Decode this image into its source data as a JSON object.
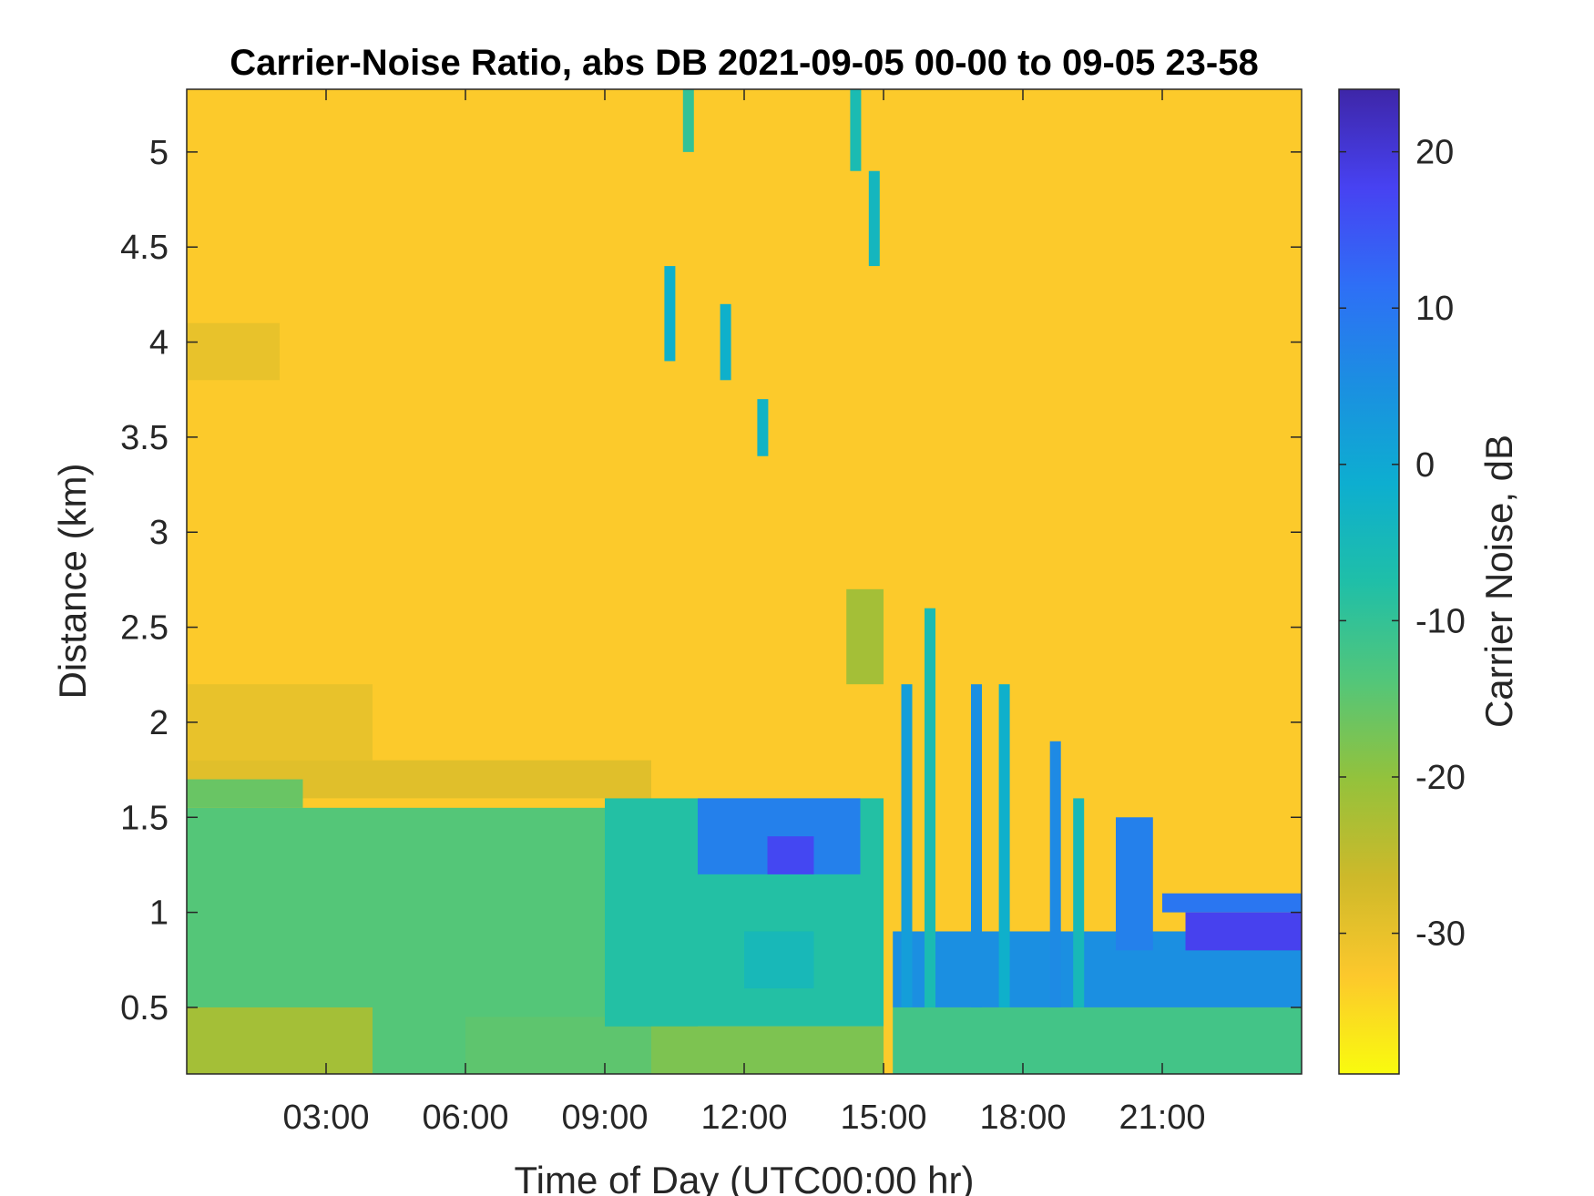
{
  "chart_data": {
    "type": "heatmap",
    "title": "Carrier-Noise Ratio, abs DB 2021-09-05 00-00 to 09-05 23-58",
    "xlabel": "Time of Day (UTC00:00 hr)",
    "ylabel": "Distance (km)",
    "colorbar_label": "Carrier Noise, dB",
    "xlim": [
      0,
      24
    ],
    "ylim": [
      0.15,
      5.33
    ],
    "clim": [
      -39,
      24
    ],
    "x_ticks": [
      3,
      6,
      9,
      12,
      15,
      18,
      21
    ],
    "x_tick_labels": [
      "03:00",
      "06:00",
      "09:00",
      "12:00",
      "15:00",
      "18:00",
      "21:00"
    ],
    "y_ticks": [
      0.5,
      1,
      1.5,
      2,
      2.5,
      3,
      3.5,
      4,
      4.5,
      5
    ],
    "y_tick_labels": [
      "0.5",
      "1",
      "1.5",
      "2",
      "2.5",
      "3",
      "3.5",
      "4",
      "4.5",
      "5"
    ],
    "colorbar_ticks": [
      -30,
      -20,
      -10,
      0,
      10,
      20
    ],
    "colorbar_tick_labels": [
      "-30",
      "-20",
      "-10",
      "0",
      "10",
      "20"
    ],
    "colormap": "parula (reversed)",
    "colors": {
      "low": "#f9fb0e",
      "high": "#3e26a8",
      "background_level": "#fcc82c"
    },
    "regions": [
      {
        "x": [
          0,
          24
        ],
        "y": [
          0.15,
          5.33
        ],
        "value": -33
      },
      {
        "x": [
          0,
          4
        ],
        "y": [
          1.8,
          2.2
        ],
        "value": -30
      },
      {
        "x": [
          0,
          2
        ],
        "y": [
          3.8,
          4.1
        ],
        "value": -30
      },
      {
        "x": [
          0,
          10
        ],
        "y": [
          1.6,
          1.8
        ],
        "value": -29
      },
      {
        "x": [
          0,
          2.5
        ],
        "y": [
          1.55,
          1.7
        ],
        "value": -16
      },
      {
        "x": [
          0,
          10
        ],
        "y": [
          0.15,
          1.55
        ],
        "value": -14
      },
      {
        "x": [
          0,
          4
        ],
        "y": [
          0.15,
          0.5
        ],
        "value": -22
      },
      {
        "x": [
          6,
          11
        ],
        "y": [
          0.15,
          0.45
        ],
        "value": -15
      },
      {
        "x": [
          9,
          15
        ],
        "y": [
          0.4,
          1.6
        ],
        "value": -8
      },
      {
        "x": [
          11,
          14.5
        ],
        "y": [
          1.2,
          1.6
        ],
        "value": 8
      },
      {
        "x": [
          12.5,
          13.5
        ],
        "y": [
          1.2,
          1.4
        ],
        "value": 17
      },
      {
        "x": [
          12,
          13.5
        ],
        "y": [
          0.6,
          0.9
        ],
        "value": -5
      },
      {
        "x": [
          10,
          15
        ],
        "y": [
          0.15,
          0.4
        ],
        "value": -18
      },
      {
        "x": [
          14.2,
          15
        ],
        "y": [
          2.2,
          2.7
        ],
        "value": -22
      },
      {
        "x": [
          15.2,
          24
        ],
        "y": [
          0.15,
          0.5
        ],
        "value": -12
      },
      {
        "x": [
          15.2,
          24
        ],
        "y": [
          0.5,
          0.9
        ],
        "value": 5
      },
      {
        "x": [
          20,
          20.8
        ],
        "y": [
          0.8,
          1.5
        ],
        "value": 8
      },
      {
        "x": [
          21.5,
          24
        ],
        "y": [
          0.8,
          1.0
        ],
        "value": 18
      },
      {
        "x": [
          21,
          24
        ],
        "y": [
          1.0,
          1.1
        ],
        "value": 10
      }
    ],
    "streaks": [
      {
        "x": 10.4,
        "y": [
          3.9,
          4.4
        ],
        "value": -2
      },
      {
        "x": 11.6,
        "y": [
          3.8,
          4.2
        ],
        "value": -2
      },
      {
        "x": 12.4,
        "y": [
          3.4,
          3.7
        ],
        "value": -3
      },
      {
        "x": 14.8,
        "y": [
          4.4,
          4.9
        ],
        "value": -4
      },
      {
        "x": 14.4,
        "y": [
          4.9,
          5.33
        ],
        "value": -6
      },
      {
        "x": 10.8,
        "y": [
          5.0,
          5.33
        ],
        "value": -10
      },
      {
        "x": 15.5,
        "y": [
          0.5,
          2.2
        ],
        "value": 2
      },
      {
        "x": 16.0,
        "y": [
          0.5,
          2.6
        ],
        "value": -6
      },
      {
        "x": 17.0,
        "y": [
          0.5,
          2.2
        ],
        "value": 5
      },
      {
        "x": 17.6,
        "y": [
          0.5,
          2.2
        ],
        "value": -2
      },
      {
        "x": 18.7,
        "y": [
          0.5,
          1.9
        ],
        "value": 6
      },
      {
        "x": 19.2,
        "y": [
          0.5,
          1.6
        ],
        "value": -5
      }
    ]
  }
}
